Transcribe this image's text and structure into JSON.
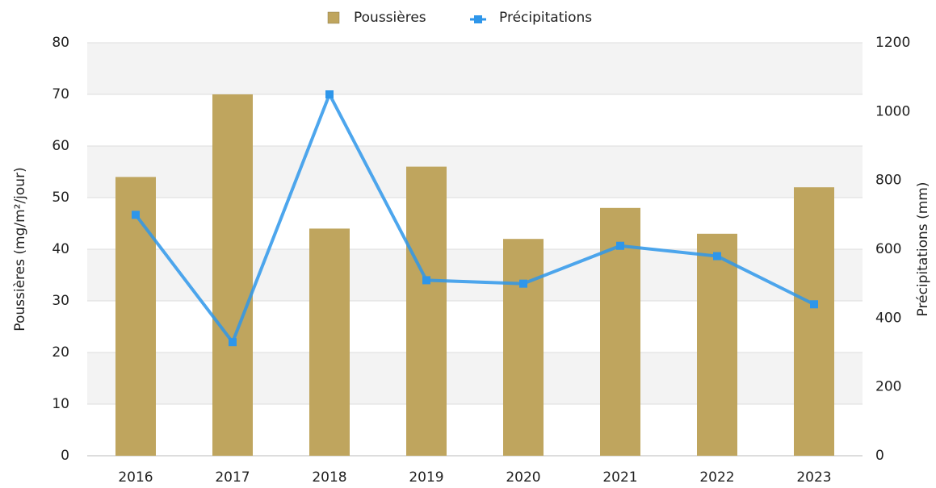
{
  "chart_data": {
    "type": "bar_line",
    "categories": [
      "2016",
      "2017",
      "2018",
      "2019",
      "2020",
      "2021",
      "2022",
      "2023"
    ],
    "series": [
      {
        "name": "Poussières",
        "type": "bar",
        "color": "#bfa55e",
        "values": [
          54,
          70,
          44,
          56,
          42,
          48,
          43,
          52
        ]
      },
      {
        "name": "Précipitations",
        "type": "line",
        "axis": "y2",
        "color": "#2e96ea",
        "values": [
          700,
          330,
          1050,
          510,
          500,
          610,
          580,
          440
        ]
      }
    ],
    "y_label": "Poussières (mg/m²/jour)",
    "y2_label": "Précipitations (mm)",
    "ylim": [
      0,
      80
    ],
    "yticks": [
      0,
      10,
      20,
      30,
      40,
      50,
      60,
      70,
      80
    ],
    "y2lim": [
      0,
      1200
    ],
    "y2ticks": [
      0,
      200,
      400,
      600,
      800,
      1000,
      1200
    ],
    "grid": true,
    "alternating_bands": true,
    "legend": "top"
  }
}
